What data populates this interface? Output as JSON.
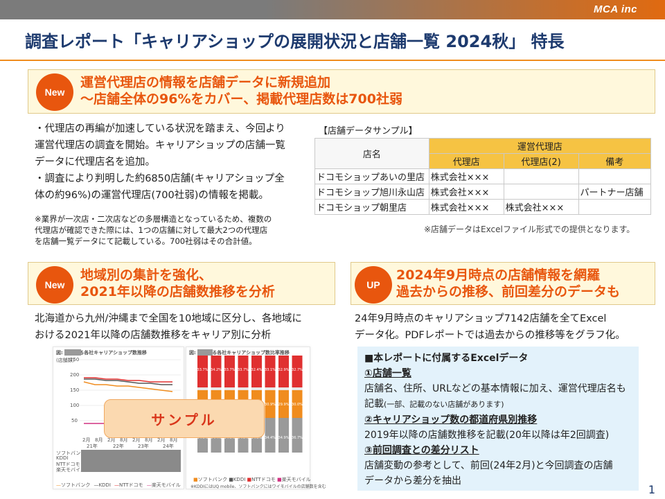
{
  "header": {
    "brand": "MCA inc",
    "title": "調査レポート「キャリアショップの展開状況と店舗一覧 2024秋」 特長"
  },
  "section1": {
    "badge": "New",
    "heading_line1": "運営代理店の情報を店舗データに新規追加",
    "heading_line2": "～店舗全体の96%をカバー、掲載代理店数は700社弱",
    "body": [
      "・代理店の再編が加速している状況を踏まえ、今回より",
      "運営代理店の調査を開始。キャリアショップの店舗一覧",
      "データに代理店名を追加。",
      "・調査により判明した約6850店舗(キャリアショップ全",
      "体の約96%)の運営代理店(700社弱)の情報を掲載。"
    ],
    "note": [
      "※業界が一次店・二次店などの多層構造となっているため、複数の",
      "代理店が確認できた際には、1つの店舗に対して最大2つの代理店",
      "を店舗一覧データにて記載している。700社弱はその合計値。"
    ],
    "table_caption": "【店舗データサンプル】",
    "table": {
      "col_store": "店名",
      "group_header": "運営代理店",
      "columns": [
        "代理店",
        "代理店(2)",
        "備考"
      ],
      "rows": [
        {
          "store": "ドコモショップあいの里店",
          "agent1": "株式会社×××",
          "agent2": "",
          "remark": ""
        },
        {
          "store": "ドコモショップ旭川永山店",
          "agent1": "株式会社×××",
          "agent2": "",
          "remark": "パートナー店舗"
        },
        {
          "store": "ドコモショップ朝里店",
          "agent1": "株式会社×××",
          "agent2": "株式会社×××",
          "remark": ""
        }
      ]
    },
    "table_note": "※店舗データはExcelファイル形式での提供となります。"
  },
  "section2": {
    "badge": "New",
    "heading_line1": "地域別の集計を強化、",
    "heading_line2": "2021年以降の店舗数推移を分析",
    "body": [
      "北海道から九州/沖縄まで全国を10地域に区分し、各地域に",
      "おける2021年以降の店舗数推移をキャリア別に分析"
    ],
    "chart_left_title": "図:      における各社キャリアショップ数推移",
    "chart_right_title": "図:      における各社キャリアショップ数比率推移",
    "chart_left_unit": "(店舗数)",
    "stamp": "サンプル",
    "legend": [
      "ソフトバンク",
      "KDDI",
      "NTTドコモ",
      "楽天モバイル"
    ],
    "chart_left_yticks": [
      "250",
      "200",
      "150",
      "100",
      "50"
    ],
    "chart_left_xticks": [
      "2月",
      "8月",
      "2月",
      "8月",
      "2月",
      "8月",
      "2月",
      "8月"
    ],
    "chart_left_years": [
      "21年",
      "22年",
      "23年",
      "24年"
    ],
    "chart_left_row_labels": [
      "ソフトバンク",
      "KDDI",
      "NTTドコモ",
      "楽天モバイル"
    ],
    "chart_right_footnote": "※KDDIにはUQ mobile、ソフトバンクにはワイモバイルの店舗数を含む",
    "chart_right_top_labels": [
      "33.7%",
      "34.2%",
      "33.7%",
      "33.7%",
      "32.4%",
      "33.1%",
      "32.9%",
      "32.7%"
    ],
    "chart_right_mid_labels": [
      "30.9%",
      "29.9%",
      "30.0%"
    ],
    "chart_right_bottom_labels": [
      "34.6%",
      "34.4%",
      "34.6%",
      "34.5%",
      "34.5%",
      "34.4%",
      "34.9%",
      "36.7%"
    ]
  },
  "section3": {
    "badge": "UP",
    "heading_line1": "2024年9月時点の店舗情報を網羅",
    "heading_line2": "過去からの推移、前回差分のデータも",
    "body": [
      "24年9月時点のキャリアショップ7142店舗を全てExcel",
      "データ化。PDFレポートでは過去からの推移等をグラフ化。"
    ],
    "excel_title": "■本レポートに付属するExcelデータ",
    "items": [
      {
        "head": "①店舗一覧",
        "lines": [
          "店舗名、住所、URLなどの基本情報に加え、運営代理店名も",
          "記載"
        ],
        "small": "(一部、記載のない店舗があります)"
      },
      {
        "head": "②キャリアショップ数の都道府県別推移",
        "lines": [
          "2019年以降の店舗数推移を記載(20年以降は年2回調査)"
        ]
      },
      {
        "head": "③前回調査との差分リスト",
        "lines": [
          "店舗変動の参考として、前回(24年2月)と今回調査の店舗",
          "データから差分を抽出"
        ]
      }
    ]
  },
  "page_number": "1",
  "colors": {
    "accent": "#e8560e",
    "title": "#1d3a6e",
    "panel": "#fff8dc",
    "table_header": "#f6c343",
    "excel_box": "#e3f2fb"
  }
}
